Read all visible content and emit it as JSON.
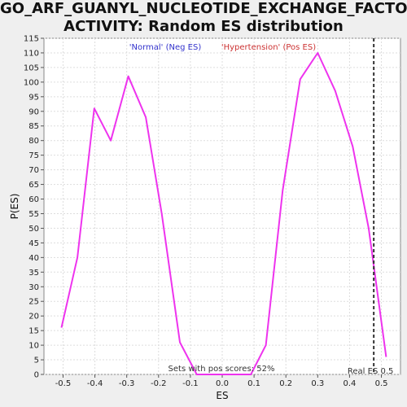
{
  "title_line1": "GO_ARF_GUANYL_NUCLEOTIDE_EXCHANGE_FACTOR_",
  "title_line2": "ACTIVITY: Random ES distribution",
  "chart_data": {
    "type": "line",
    "title": "GO_ARF_GUANYL_NUCLEOTIDE_EXCHANGE_FACTOR_ACTIVITY: Random ES distribution",
    "xlabel": "ES",
    "ylabel": "P(ES)",
    "xlim": [
      -0.56,
      0.56
    ],
    "ylim": [
      0,
      115
    ],
    "xticks": [
      -0.5,
      -0.4,
      -0.3,
      -0.2,
      -0.1,
      0.0,
      0.1,
      0.2,
      0.3,
      0.4,
      0.5
    ],
    "xtick_labels": [
      "-0.5",
      "-0.4",
      "-0.3",
      "-0.2",
      "-0.1",
      "0.0",
      "0.1",
      "0.2",
      "0.3",
      "0.4",
      "0.5"
    ],
    "yticks": [
      0,
      5,
      10,
      15,
      20,
      25,
      30,
      35,
      40,
      45,
      50,
      55,
      60,
      65,
      70,
      75,
      80,
      85,
      90,
      95,
      100,
      105,
      110,
      115
    ],
    "grid": true,
    "series": [
      {
        "color": "#ee33ee",
        "x": [
          -0.505,
          -0.455,
          -0.402,
          -0.35,
          -0.295,
          -0.24,
          -0.19,
          -0.133,
          -0.08,
          -0.03,
          0.03,
          0.09,
          0.137,
          0.19,
          0.245,
          0.3,
          0.355,
          0.41,
          0.46,
          0.515
        ],
        "y": [
          16,
          40,
          91,
          80,
          102,
          88,
          55,
          11,
          0,
          0,
          0,
          0,
          10,
          63,
          101,
          110,
          97,
          78,
          50,
          6
        ]
      }
    ],
    "reference_line": {
      "x": 0.476,
      "label": "Real ES 0.5",
      "style": "dashed",
      "color": "#333333"
    },
    "annotations": {
      "neg_label": "'Normal' (Neg ES)",
      "neg_color": "#3333cc",
      "pos_label": "'Hypertension' (Pos ES)",
      "pos_color": "#cc3333",
      "sets_label": "Sets with pos scores: 52%"
    }
  }
}
